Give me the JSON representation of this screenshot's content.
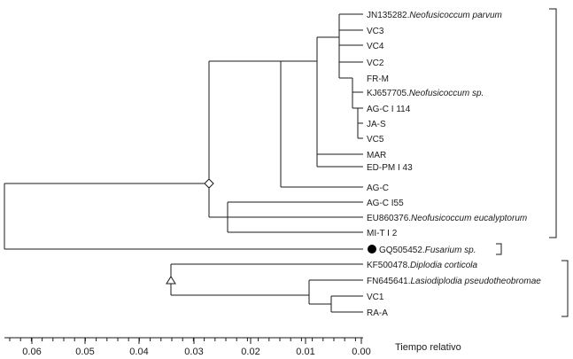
{
  "axis": {
    "title": "Tiempo relativo",
    "ticks": [
      "0.06",
      "0.05",
      "0.04",
      "0.03",
      "0.02",
      "0.01",
      "0.00"
    ]
  },
  "leaves": [
    {
      "code": "JN135282.",
      "species": "Neofusicoccum parvum"
    },
    {
      "code": "VC3",
      "species": ""
    },
    {
      "code": "VC4",
      "species": ""
    },
    {
      "code": "VC2",
      "species": ""
    },
    {
      "code": "FR-M",
      "species": ""
    },
    {
      "code": "KJ657705.",
      "species": "Neofusicoccum sp."
    },
    {
      "code": "AG-C I 114",
      "species": ""
    },
    {
      "code": "JA-S",
      "species": ""
    },
    {
      "code": "VC5",
      "species": ""
    },
    {
      "code": "MAR",
      "species": ""
    },
    {
      "code": "ED-PM I 43",
      "species": ""
    },
    {
      "code": "AG-C",
      "species": ""
    },
    {
      "code": "AG-C I55",
      "species": ""
    },
    {
      "code": "EU860376.",
      "species": "Neofusicoccum eucalyptorum"
    },
    {
      "code": "MI-T I 2",
      "species": ""
    },
    {
      "code": "GQ505452.",
      "species": "Fusarium sp."
    },
    {
      "code": "KF500478.",
      "species": "Diplodia corticola"
    },
    {
      "code": "FN645641.",
      "species": "Lasiodiplodia pseudotheobromae"
    },
    {
      "code": "VC1",
      "species": ""
    },
    {
      "code": "RA-A",
      "species": ""
    }
  ],
  "colors": {
    "line": "#1a1a1a",
    "marker": "#000000",
    "background": "#ffffff"
  }
}
